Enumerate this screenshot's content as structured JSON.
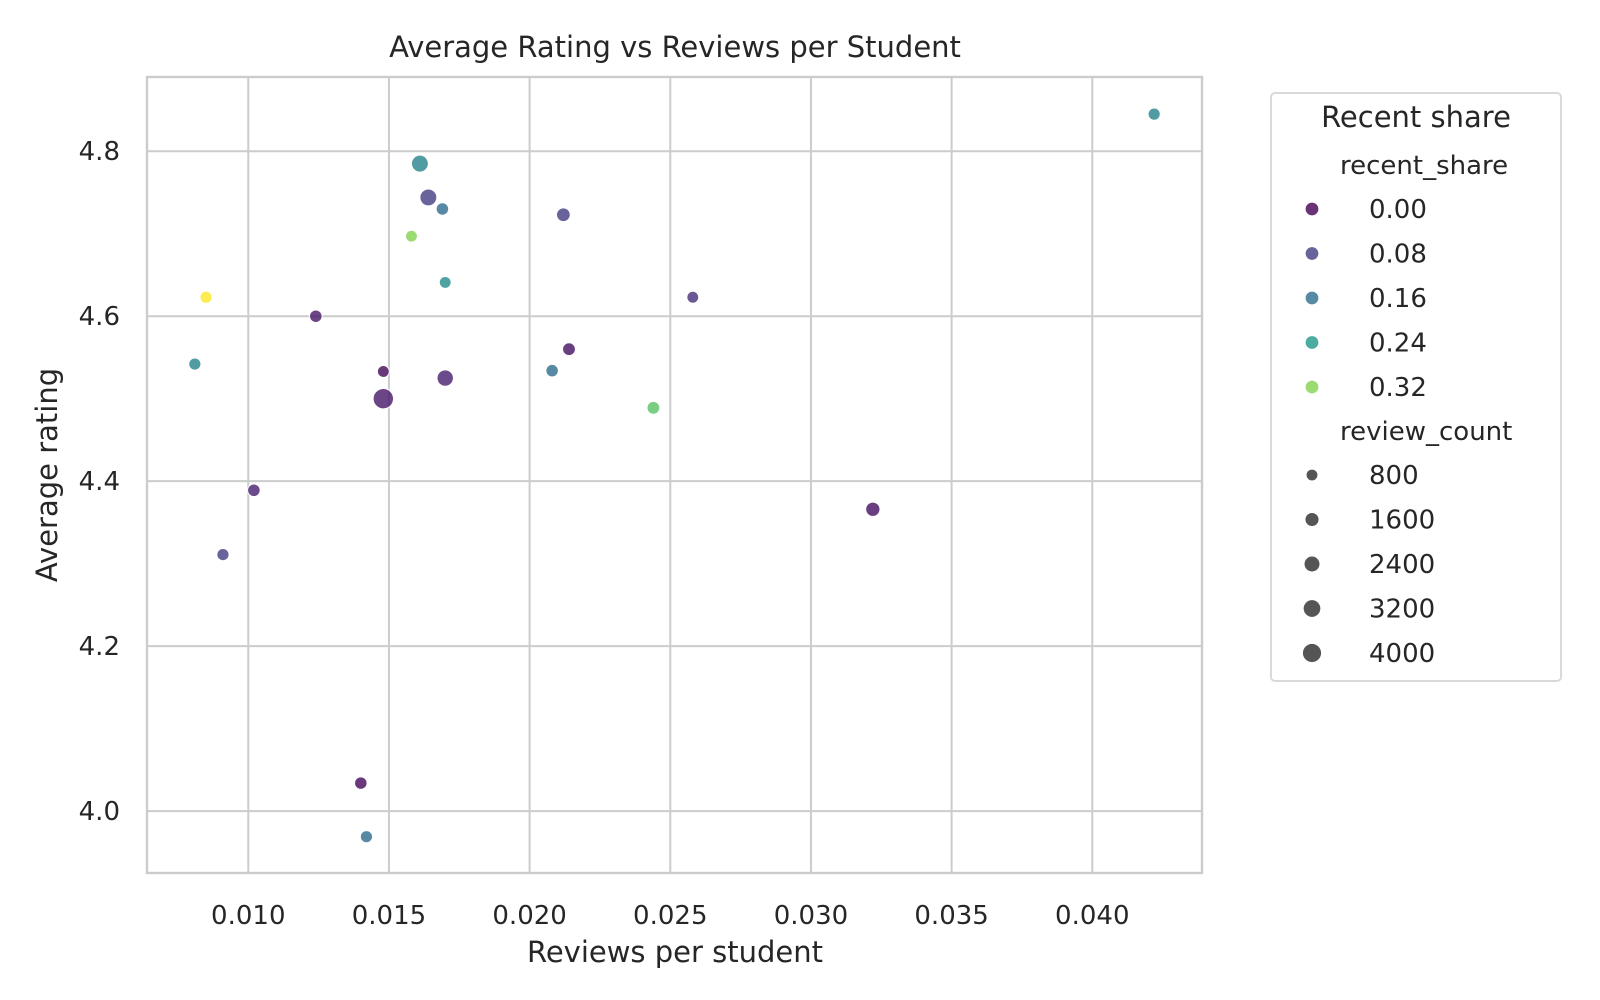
{
  "chart_data": {
    "type": "scatter",
    "title": "Average Rating vs Reviews per Student",
    "xlabel": "Reviews per student",
    "ylabel": "Average rating",
    "xlim": [
      0.0064,
      0.0439
    ],
    "ylim": [
      3.925,
      4.89
    ],
    "x_ticks": [
      0.01,
      0.015,
      0.02,
      0.025,
      0.03,
      0.035,
      0.04
    ],
    "x_tick_labels": [
      "0.010",
      "0.015",
      "0.020",
      "0.025",
      "0.030",
      "0.035",
      "0.040"
    ],
    "y_ticks": [
      4.0,
      4.2,
      4.4,
      4.6,
      4.8
    ],
    "y_tick_labels": [
      "4.0",
      "4.2",
      "4.4",
      "4.6",
      "4.8"
    ],
    "grid": true,
    "legend": {
      "placement": "outside-right-top",
      "title": "Recent share",
      "hue_title": "recent_share",
      "size_title": "review_count",
      "hue_entries": [
        {
          "label": "0.00",
          "value": 0.0
        },
        {
          "label": "0.08",
          "value": 0.08
        },
        {
          "label": "0.16",
          "value": 0.16
        },
        {
          "label": "0.24",
          "value": 0.24
        },
        {
          "label": "0.32",
          "value": 0.32
        }
      ],
      "size_entries": [
        {
          "label": "800",
          "value": 800
        },
        {
          "label": "1600",
          "value": 1600
        },
        {
          "label": "2400",
          "value": 2400
        },
        {
          "label": "3200",
          "value": 3200
        },
        {
          "label": "4000",
          "value": 4000
        }
      ]
    },
    "colormap": "viridis",
    "hue_range": [
      0.0,
      0.36
    ],
    "size_range": [
      500,
      4500
    ],
    "points": [
      {
        "x": 0.0081,
        "y": 4.542,
        "recent_share": 0.2,
        "review_count": 900
      },
      {
        "x": 0.0085,
        "y": 4.623,
        "recent_share": 0.36,
        "review_count": 900
      },
      {
        "x": 0.0091,
        "y": 4.311,
        "recent_share": 0.08,
        "review_count": 900
      },
      {
        "x": 0.0102,
        "y": 4.389,
        "recent_share": 0.04,
        "review_count": 1000
      },
      {
        "x": 0.0124,
        "y": 4.6,
        "recent_share": 0.03,
        "review_count": 1000
      },
      {
        "x": 0.014,
        "y": 4.034,
        "recent_share": 0.01,
        "review_count": 1000
      },
      {
        "x": 0.0142,
        "y": 3.969,
        "recent_share": 0.16,
        "review_count": 900
      },
      {
        "x": 0.0148,
        "y": 4.533,
        "recent_share": 0.01,
        "review_count": 800
      },
      {
        "x": 0.0148,
        "y": 4.5,
        "recent_share": 0.03,
        "review_count": 4200
      },
      {
        "x": 0.0158,
        "y": 4.697,
        "recent_share": 0.32,
        "review_count": 800
      },
      {
        "x": 0.0161,
        "y": 4.785,
        "recent_share": 0.2,
        "review_count": 2600
      },
      {
        "x": 0.0164,
        "y": 4.744,
        "recent_share": 0.08,
        "review_count": 2600
      },
      {
        "x": 0.0169,
        "y": 4.73,
        "recent_share": 0.16,
        "review_count": 1000
      },
      {
        "x": 0.017,
        "y": 4.641,
        "recent_share": 0.22,
        "review_count": 800
      },
      {
        "x": 0.017,
        "y": 4.525,
        "recent_share": 0.04,
        "review_count": 2400
      },
      {
        "x": 0.0208,
        "y": 4.534,
        "recent_share": 0.16,
        "review_count": 1000
      },
      {
        "x": 0.0212,
        "y": 4.723,
        "recent_share": 0.08,
        "review_count": 1400
      },
      {
        "x": 0.0214,
        "y": 4.56,
        "recent_share": 0.02,
        "review_count": 1100
      },
      {
        "x": 0.0244,
        "y": 4.489,
        "recent_share": 0.3,
        "review_count": 1100
      },
      {
        "x": 0.0258,
        "y": 4.623,
        "recent_share": 0.06,
        "review_count": 800
      },
      {
        "x": 0.0322,
        "y": 4.366,
        "recent_share": 0.02,
        "review_count": 1600
      },
      {
        "x": 0.0422,
        "y": 4.845,
        "recent_share": 0.2,
        "review_count": 900
      }
    ]
  }
}
